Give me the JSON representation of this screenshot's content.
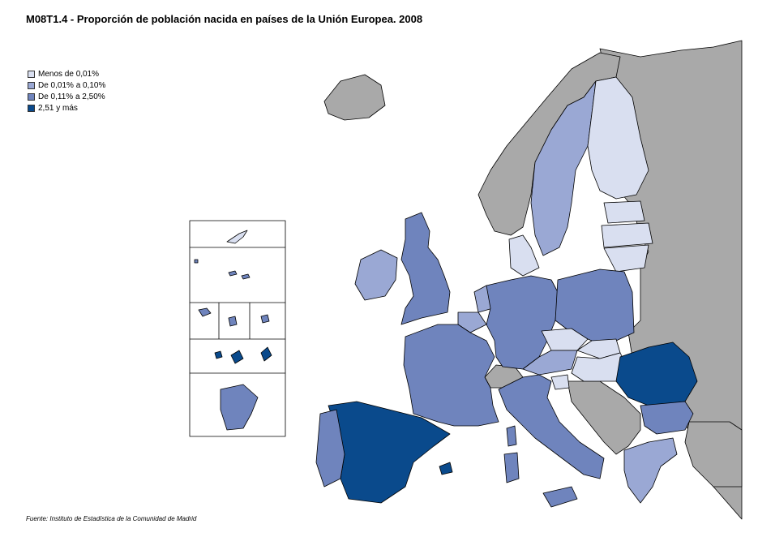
{
  "title": "M08T1.4 - Proporción de población nacida en países de la Unión Europea. 2008",
  "source": "Fuente: Instituto de Estadística de la Comunidad de Madrid",
  "legend": {
    "items": [
      {
        "label": "Menos de 0,01%",
        "color": "#d9dff0"
      },
      {
        "label": "De 0,01% a 0,10%",
        "color": "#9aa8d4"
      },
      {
        "label": "De 0,11% a 2,50%",
        "color": "#6f84bd"
      },
      {
        "label": "2,51 y más",
        "color": "#0a4a8c"
      }
    ]
  },
  "colors": {
    "non_eu": "#a9a9a9",
    "sea": "#ffffff",
    "border": "#000000"
  }
}
